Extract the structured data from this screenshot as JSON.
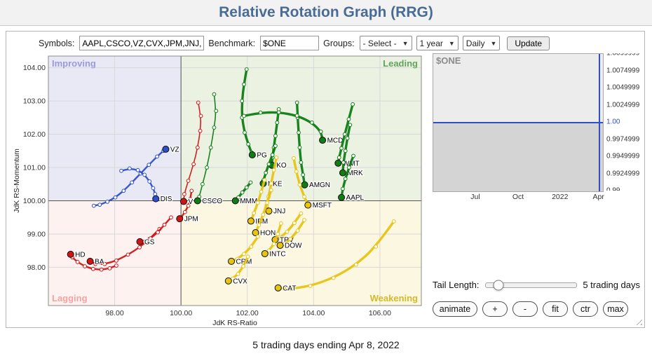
{
  "header": {
    "title": "Relative Rotation Graph (RRG)"
  },
  "toolbar": {
    "symbols_label": "Symbols:",
    "symbols_value": "AAPL,CSCO,VZ,CVX,JPM,JNJ,MRK,AMGN,UNH,N",
    "benchmark_label": "Benchmark:",
    "benchmark_value": "$ONE",
    "groups_label": "Groups:",
    "groups_selected": "- Select -",
    "period_selected": "1 year",
    "frequency_selected": "Daily",
    "update_label": "Update"
  },
  "chart_data": {
    "type": "scatter",
    "title": "Relative Rotation Graph",
    "xlabel": "JdK RS-Ratio",
    "ylabel": "JdK RS-Momentum",
    "xlim": [
      96.0,
      107.25
    ],
    "ylim": [
      96.85,
      104.35
    ],
    "xticks": [
      "98.00",
      "100.00",
      "102.00",
      "104.00",
      "106.00"
    ],
    "xtick_values": [
      98,
      100,
      102,
      104,
      106
    ],
    "yticks": [
      "104.00",
      "103.00",
      "102.00",
      "101.00",
      "100.00",
      "99.00",
      "98.00"
    ],
    "ytick_values": [
      104,
      103,
      102,
      101,
      100,
      99,
      98
    ],
    "center": [
      100,
      100
    ],
    "quadrants": [
      {
        "name": "improving",
        "label": "Improving",
        "bg": "#e9e9f6",
        "label_color": "#9a9ad8",
        "pos": "top-left"
      },
      {
        "name": "leading",
        "label": "Leading",
        "bg": "#ebf2e2",
        "label_color": "#5fa55f",
        "pos": "top-right"
      },
      {
        "name": "lagging",
        "label": "Lagging",
        "bg": "#fdf2f0",
        "label_color": "#f2a3a3",
        "pos": "bottom-left"
      },
      {
        "name": "weakening",
        "label": "Weakening",
        "bg": "#fcf7e0",
        "label_color": "#d6b92a",
        "pos": "bottom-right"
      }
    ],
    "group_colors": {
      "blue": "#2d4fc8",
      "red": "#d21414",
      "green": "#0e7d14",
      "yellow": "#e7c312"
    },
    "group_widths": {
      "blue": 2.4,
      "red": 2.4,
      "green": 3.4,
      "yellow": 3.4
    },
    "series": [
      {
        "symbol": "VZ",
        "group": "blue",
        "points": [
          [
            97.37,
            99.85
          ],
          [
            97.55,
            99.88
          ],
          [
            97.78,
            99.97
          ],
          [
            98.02,
            100.1
          ],
          [
            98.27,
            100.3
          ],
          [
            98.52,
            100.55
          ],
          [
            98.78,
            100.82
          ],
          [
            99.03,
            101.08
          ],
          [
            99.28,
            101.33
          ],
          [
            99.47,
            101.5
          ],
          [
            99.54,
            101.55
          ]
        ]
      },
      {
        "symbol": "DIS",
        "group": "blue",
        "points": [
          [
            98.2,
            100.9
          ],
          [
            98.45,
            100.97
          ],
          [
            98.7,
            100.92
          ],
          [
            98.9,
            100.78
          ],
          [
            99.05,
            100.58
          ],
          [
            99.16,
            100.38
          ],
          [
            99.22,
            100.2
          ],
          [
            99.24,
            100.06
          ]
        ]
      },
      {
        "symbol": "HD",
        "group": "red",
        "points": [
          [
            98.05,
            98.05
          ],
          [
            97.85,
            97.97
          ],
          [
            97.6,
            97.93
          ],
          [
            97.35,
            97.95
          ],
          [
            97.1,
            98.03
          ],
          [
            96.88,
            98.16
          ],
          [
            96.72,
            98.3
          ],
          [
            96.67,
            98.39
          ]
        ]
      },
      {
        "symbol": "BA",
        "group": "red",
        "points": [
          [
            99.35,
            99.15
          ],
          [
            99.05,
            98.85
          ],
          [
            98.75,
            98.6
          ],
          [
            98.4,
            98.38
          ],
          [
            98.05,
            98.2
          ],
          [
            97.7,
            98.1
          ],
          [
            97.42,
            98.1
          ],
          [
            97.26,
            98.18
          ]
        ]
      },
      {
        "symbol": "GS",
        "group": "red",
        "points": [
          [
            99.7,
            99.5
          ],
          [
            99.5,
            99.28
          ],
          [
            99.3,
            99.05
          ],
          [
            99.08,
            98.87
          ],
          [
            98.9,
            98.77
          ],
          [
            98.76,
            98.77
          ]
        ]
      },
      {
        "symbol": "JPM",
        "group": "red",
        "points": [
          [
            100.32,
            100.3
          ],
          [
            100.28,
            100.05
          ],
          [
            100.22,
            99.85
          ],
          [
            100.12,
            99.66
          ],
          [
            100.0,
            99.5
          ],
          [
            99.96,
            99.46
          ]
        ]
      },
      {
        "symbol": "V",
        "group": "red",
        "w": 1.6,
        "points": [
          [
            100.52,
            102.95
          ],
          [
            100.6,
            102.55
          ],
          [
            100.58,
            102.1
          ],
          [
            100.5,
            101.6
          ],
          [
            100.38,
            101.1
          ],
          [
            100.22,
            100.6
          ],
          [
            100.1,
            100.2
          ],
          [
            100.08,
            99.98
          ]
        ]
      },
      {
        "symbol": "CSCO",
        "group": "green",
        "w": 1.6,
        "points": [
          [
            101.0,
            103.2
          ],
          [
            101.06,
            102.7
          ],
          [
            101.0,
            102.2
          ],
          [
            100.9,
            101.6
          ],
          [
            100.78,
            101.0
          ],
          [
            100.65,
            100.5
          ],
          [
            100.55,
            100.12
          ],
          [
            100.5,
            100.0
          ]
        ]
      },
      {
        "symbol": "PG",
        "group": "green",
        "points": [
          [
            101.98,
            103.95
          ],
          [
            101.9,
            103.5
          ],
          [
            101.84,
            103.0
          ],
          [
            101.84,
            102.5
          ],
          [
            101.92,
            102.05
          ],
          [
            102.03,
            101.7
          ],
          [
            102.13,
            101.45
          ],
          [
            102.15,
            101.38
          ]
        ]
      },
      {
        "symbol": "KO",
        "group": "green",
        "points": [
          [
            102.95,
            102.75
          ],
          [
            102.9,
            102.35
          ],
          [
            102.85,
            101.95
          ],
          [
            102.8,
            101.6
          ],
          [
            102.76,
            101.3
          ],
          [
            102.74,
            101.07
          ]
        ]
      },
      {
        "symbol": "NKE",
        "group": "green",
        "points": [
          [
            102.85,
            101.65
          ],
          [
            102.76,
            101.38
          ],
          [
            102.65,
            101.1
          ],
          [
            102.56,
            100.84
          ],
          [
            102.49,
            100.62
          ],
          [
            102.48,
            100.52
          ]
        ]
      },
      {
        "symbol": "MMM",
        "group": "green",
        "points": [
          [
            102.1,
            100.55
          ],
          [
            101.98,
            100.4
          ],
          [
            101.85,
            100.25
          ],
          [
            101.73,
            100.1
          ],
          [
            101.64,
            100.0
          ]
        ]
      },
      {
        "symbol": "AMGN",
        "group": "green",
        "points": [
          [
            103.5,
            102.95
          ],
          [
            103.52,
            102.5
          ],
          [
            103.55,
            102.05
          ],
          [
            103.58,
            101.6
          ],
          [
            103.62,
            101.15
          ],
          [
            103.68,
            100.78
          ],
          [
            103.73,
            100.48
          ]
        ]
      },
      {
        "symbol": "MCD",
        "group": "green",
        "points": [
          [
            101.9,
            102.55
          ],
          [
            102.4,
            102.65
          ],
          [
            102.95,
            102.66
          ],
          [
            103.5,
            102.56
          ],
          [
            103.95,
            102.35
          ],
          [
            104.22,
            102.08
          ],
          [
            104.27,
            101.82
          ]
        ]
      },
      {
        "symbol": "WMT",
        "group": "green",
        "points": [
          [
            105.18,
            102.9
          ],
          [
            105.06,
            102.45
          ],
          [
            104.94,
            102.0
          ],
          [
            104.84,
            101.58
          ],
          [
            104.77,
            101.3
          ],
          [
            104.74,
            101.13
          ]
        ]
      },
      {
        "symbol": "MRK",
        "group": "green",
        "points": [
          [
            105.1,
            102.28
          ],
          [
            105.02,
            101.88
          ],
          [
            104.96,
            101.5
          ],
          [
            104.9,
            101.15
          ],
          [
            104.88,
            100.84
          ]
        ]
      },
      {
        "symbol": "AAPL",
        "group": "green",
        "points": [
          [
            105.2,
            101.35
          ],
          [
            105.07,
            101.0
          ],
          [
            104.96,
            100.66
          ],
          [
            104.88,
            100.36
          ],
          [
            104.84,
            100.1
          ]
        ]
      },
      {
        "symbol": "JNJ",
        "group": "yellow",
        "points": [
          [
            102.88,
            101.3
          ],
          [
            102.8,
            100.92
          ],
          [
            102.72,
            100.52
          ],
          [
            102.64,
            100.12
          ],
          [
            102.58,
            99.85
          ],
          [
            102.65,
            99.69
          ]
        ]
      },
      {
        "symbol": "MSFT",
        "group": "yellow",
        "points": [
          [
            103.4,
            101.28
          ],
          [
            103.48,
            100.88
          ],
          [
            103.58,
            100.48
          ],
          [
            103.72,
            100.12
          ],
          [
            103.83,
            99.87
          ]
        ]
      },
      {
        "symbol": "IBM",
        "group": "yellow",
        "points": [
          [
            102.52,
            100.62
          ],
          [
            102.42,
            100.27
          ],
          [
            102.32,
            99.94
          ],
          [
            102.2,
            99.63
          ],
          [
            102.11,
            99.39
          ]
        ]
      },
      {
        "symbol": "HON",
        "group": "yellow",
        "points": [
          [
            102.72,
            100.32
          ],
          [
            102.6,
            99.94
          ],
          [
            102.48,
            99.58
          ],
          [
            102.35,
            99.27
          ],
          [
            102.25,
            99.04
          ]
        ]
      },
      {
        "symbol": "TRV",
        "group": "yellow",
        "points": [
          [
            103.62,
            99.62
          ],
          [
            103.42,
            99.33
          ],
          [
            103.2,
            99.07
          ],
          [
            103.0,
            98.9
          ],
          [
            102.84,
            98.83
          ]
        ]
      },
      {
        "symbol": "DOW",
        "group": "yellow",
        "points": [
          [
            103.72,
            99.42
          ],
          [
            103.52,
            99.1
          ],
          [
            103.3,
            98.85
          ],
          [
            103.12,
            98.7
          ],
          [
            102.99,
            98.66
          ]
        ]
      },
      {
        "symbol": "INTC",
        "group": "yellow",
        "points": [
          [
            103.02,
            99.32
          ],
          [
            102.92,
            99.0
          ],
          [
            102.8,
            98.7
          ],
          [
            102.65,
            98.5
          ],
          [
            102.53,
            98.41
          ]
        ]
      },
      {
        "symbol": "CRM",
        "group": "yellow",
        "points": [
          [
            102.32,
            98.92
          ],
          [
            102.12,
            98.62
          ],
          [
            101.9,
            98.4
          ],
          [
            101.7,
            98.25
          ],
          [
            101.52,
            98.18
          ]
        ]
      },
      {
        "symbol": "CVX",
        "group": "yellow",
        "points": [
          [
            102.02,
            98.32
          ],
          [
            101.88,
            98.03
          ],
          [
            101.72,
            97.8
          ],
          [
            101.56,
            97.66
          ],
          [
            101.43,
            97.59
          ]
        ]
      },
      {
        "symbol": "CAT",
        "group": "yellow",
        "points": [
          [
            106.42,
            99.38
          ],
          [
            105.88,
            98.62
          ],
          [
            105.28,
            98.08
          ],
          [
            104.6,
            97.68
          ],
          [
            103.9,
            97.44
          ],
          [
            103.3,
            97.35
          ],
          [
            102.93,
            97.38
          ]
        ]
      }
    ]
  },
  "benchmark_chart": {
    "title": "$ONE",
    "y_labels": [
      "1.0099999",
      "1.0074999",
      "1.0049999",
      "1.0024999",
      "1.00",
      "0.9974999",
      "0.9949999",
      "0.9924999",
      "0.99"
    ],
    "highlight_label": "1.00",
    "x_labels": [
      "Jul",
      "Oct",
      "2022",
      "Apr"
    ],
    "line_value": 1.0,
    "line_color": "#2d4fc8"
  },
  "controls": {
    "tail_label": "Tail Length:",
    "tail_value_label": "5 trading days",
    "buttons": [
      "animate",
      "+",
      "-",
      "fit",
      "ctr",
      "max"
    ]
  },
  "footer": {
    "caption": "5 trading days ending Apr 8, 2022"
  }
}
